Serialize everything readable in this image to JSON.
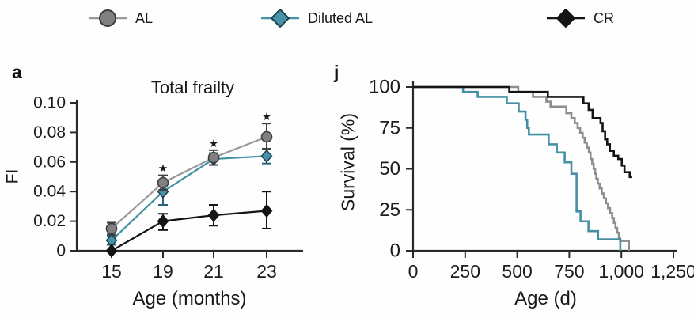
{
  "figure": {
    "background": "#fefefe",
    "text_color": "#1c1c1c",
    "axis_color": "#2a2a2a"
  },
  "legend": {
    "items": [
      {
        "label": "AL",
        "marker": "circle",
        "color": "#808080",
        "border": "#3c3c3c",
        "line": "#9a9a9a"
      },
      {
        "label": "Diluted AL",
        "marker": "diamond",
        "color": "#4692a7",
        "border": "#1b4354",
        "line": "#4692a7"
      },
      {
        "label": "CR",
        "marker": "diamond",
        "color": "#141414",
        "border": "#141414",
        "line": "#141414"
      }
    ]
  },
  "chart_data": [
    {
      "id": "frailty",
      "panel_label": "a",
      "type": "line",
      "title": "Total frailty",
      "xlabel": "Age (months)",
      "ylabel": "FI",
      "categories": [
        "15",
        "19",
        "21",
        "23"
      ],
      "ytick_labels": [
        "0",
        "0.02",
        "0.04",
        "0.06",
        "0.08",
        "0.10"
      ],
      "ytick_values": [
        0,
        0.02,
        0.04,
        0.06,
        0.08,
        0.1
      ],
      "ylim": [
        0,
        0.1
      ],
      "grid": false,
      "series": [
        {
          "name": "AL",
          "marker": "circle",
          "line_color": "#9a9a9a",
          "fill": "#808080",
          "stroke": "#3f3f3f",
          "err_color": "#3f3f3f",
          "values": [
            0.015,
            0.046,
            0.063,
            0.077
          ],
          "err_up": [
            0.004,
            0.005,
            0.005,
            0.009
          ],
          "err_down": [
            0.004,
            0.005,
            0.005,
            0.008
          ]
        },
        {
          "name": "Diluted AL",
          "marker": "diamond",
          "line_color": "#4390a4",
          "fill": "#4692a7",
          "stroke": "#16394a",
          "err_color": "#2a6377",
          "values": [
            0.007,
            0.04,
            0.062,
            0.064
          ],
          "err_up": [
            0.003,
            0.005,
            0.004,
            0.005
          ],
          "err_down": [
            0.003,
            0.009,
            0.004,
            0.005
          ]
        },
        {
          "name": "CR",
          "marker": "diamond",
          "line_color": "#141414",
          "fill": "#141414",
          "stroke": "#141414",
          "err_color": "#141414",
          "values": [
            0.0,
            0.02,
            0.024,
            0.027
          ],
          "err_up": [
            0.0,
            0.005,
            0.007,
            0.013
          ],
          "err_down": [
            0.0,
            0.006,
            0.007,
            0.012
          ]
        }
      ],
      "significance": [
        {
          "category": "19",
          "symbol": "★"
        },
        {
          "category": "21",
          "symbol": "★"
        },
        {
          "category": "23",
          "symbol": "★"
        }
      ]
    },
    {
      "id": "survival",
      "panel_label": "j",
      "type": "step-line",
      "title": "",
      "xlabel": "Age (d)",
      "ylabel": "Survival (%)",
      "xlim": [
        0,
        1250
      ],
      "ylim": [
        0,
        100
      ],
      "xticks": [
        {
          "label": "0",
          "value": 0
        },
        {
          "label": "250",
          "value": 250
        },
        {
          "label": "500",
          "value": 500
        },
        {
          "label": "750",
          "value": 750
        },
        {
          "label": "1,000",
          "value": 1000
        },
        {
          "label": "1,250",
          "value": 1250
        }
      ],
      "yticks": [
        {
          "label": "0",
          "value": 0
        },
        {
          "label": "25",
          "value": 25
        },
        {
          "label": "50",
          "value": 50
        },
        {
          "label": "75",
          "value": 75
        },
        {
          "label": "100",
          "value": 100
        }
      ],
      "grid": false,
      "series": [
        {
          "name": "AL",
          "color": "#8d8d8d",
          "start": 100,
          "end_day": 1036,
          "events": [
            [
              505,
              97
            ],
            [
              576,
              94
            ],
            [
              640,
              91
            ],
            [
              660,
              88
            ],
            [
              736,
              84
            ],
            [
              760,
              81
            ],
            [
              776,
              78
            ],
            [
              790,
              75
            ],
            [
              802,
              72
            ],
            [
              814,
              69
            ],
            [
              824,
              66
            ],
            [
              834,
              63
            ],
            [
              844,
              60
            ],
            [
              852,
              56
            ],
            [
              860,
              53
            ],
            [
              867,
              50
            ],
            [
              874,
              47
            ],
            [
              880,
              44
            ],
            [
              887,
              41
            ],
            [
              896,
              38
            ],
            [
              906,
              35
            ],
            [
              916,
              32
            ],
            [
              926,
              29
            ],
            [
              936,
              26
            ],
            [
              946,
              23
            ],
            [
              956,
              20
            ],
            [
              964,
              17
            ],
            [
              972,
              14
            ],
            [
              980,
              11
            ],
            [
              988,
              8
            ],
            [
              994,
              6
            ],
            [
              1036,
              0
            ]
          ]
        },
        {
          "name": "Diluted AL",
          "color": "#4390a4",
          "start": 100,
          "end_day": 995,
          "events": [
            [
              240,
              97
            ],
            [
              310,
              94
            ],
            [
              450,
              90
            ],
            [
              507,
              85
            ],
            [
              540,
              80
            ],
            [
              548,
              75
            ],
            [
              556,
              71
            ],
            [
              651,
              65
            ],
            [
              690,
              60
            ],
            [
              728,
              54
            ],
            [
              760,
              47
            ],
            [
              785,
              24
            ],
            [
              804,
              18
            ],
            [
              842,
              12
            ],
            [
              888,
              7
            ],
            [
              995,
              0
            ]
          ]
        },
        {
          "name": "CR",
          "color": "#141414",
          "start": 100,
          "end_day": 1052,
          "events": [
            [
              462,
              97
            ],
            [
              647,
              94
            ],
            [
              818,
              90
            ],
            [
              843,
              86
            ],
            [
              862,
              81
            ],
            [
              900,
              78
            ],
            [
              910,
              73
            ],
            [
              922,
              68
            ],
            [
              932,
              65
            ],
            [
              945,
              61
            ],
            [
              964,
              58
            ],
            [
              985,
              56
            ],
            [
              1002,
              52
            ],
            [
              1015,
              48
            ],
            [
              1040,
              45
            ]
          ]
        }
      ]
    }
  ]
}
